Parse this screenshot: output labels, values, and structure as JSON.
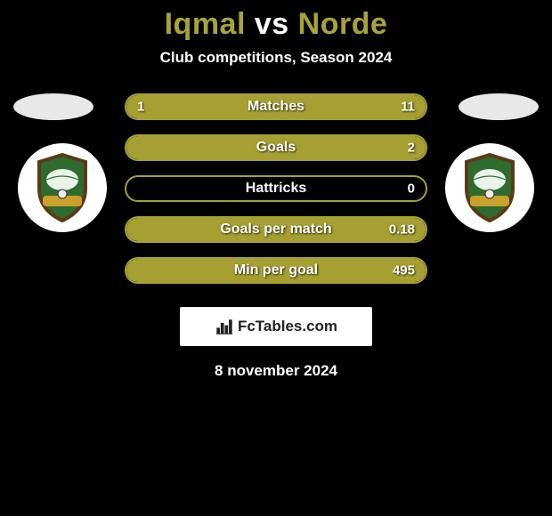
{
  "title": {
    "player1": "Iqmal",
    "vs": "vs",
    "player2": "Norde",
    "player1_color": "#a8a238",
    "vs_color": "#ffffff",
    "player2_color": "#a8a238"
  },
  "subtitle": "Club competitions, Season 2024",
  "colors": {
    "accent": "#a6a032",
    "bar_fill": "#a6a032",
    "bar_border": "#a6a032",
    "bar_empty": "#000000",
    "background": "#000000"
  },
  "crest": {
    "shield_fill": "#2f6b2f",
    "border_stroke": "#5a3a16",
    "ribbon": "#c9a12b"
  },
  "bars": [
    {
      "label": "Matches",
      "left": "1",
      "right": "11",
      "fill_from": 0,
      "fill_to": 100
    },
    {
      "label": "Goals",
      "left": "",
      "right": "2",
      "fill_from": 0,
      "fill_to": 100
    },
    {
      "label": "Hattricks",
      "left": "",
      "right": "0",
      "fill_from": 0,
      "fill_to": 0
    },
    {
      "label": "Goals per match",
      "left": "",
      "right": "0.18",
      "fill_from": 0,
      "fill_to": 100
    },
    {
      "label": "Min per goal",
      "left": "",
      "right": "495",
      "fill_from": 0,
      "fill_to": 100
    }
  ],
  "logo": {
    "text": "FcTables.com"
  },
  "date": "8 november 2024"
}
